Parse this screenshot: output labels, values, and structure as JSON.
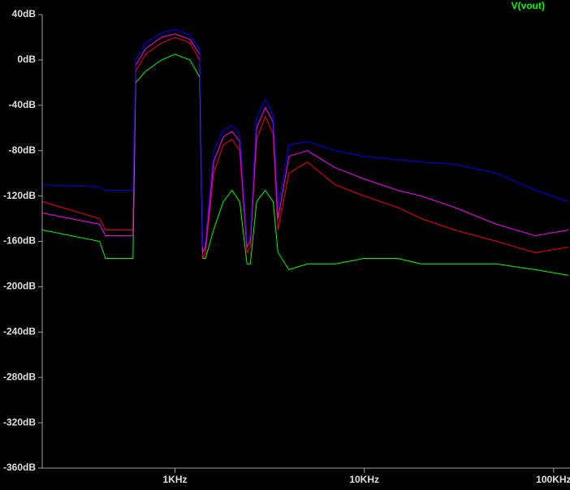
{
  "chart_data": {
    "type": "line",
    "xscale": "log",
    "legend_color": "#00ff00",
    "x": [
      200,
      400,
      430,
      600,
      620,
      700,
      850,
      1000,
      1200,
      1350,
      1400,
      1450,
      1600,
      1800,
      2000,
      2200,
      2400,
      2500,
      2700,
      3000,
      3300,
      3500,
      4000,
      5000,
      7000,
      10000,
      15000,
      20000,
      30000,
      50000,
      80000,
      120000
    ],
    "series": [
      {
        "name": "V(vout)",
        "color": "#00ff00",
        "values": [
          -150,
          -160,
          -175,
          -175,
          -20,
          -10,
          0,
          5,
          0,
          -15,
          -175,
          -175,
          -150,
          -125,
          -115,
          -125,
          -180,
          -180,
          -125,
          -115,
          -125,
          -170,
          -185,
          -180,
          -180,
          -175,
          -175,
          -180,
          -180,
          -180,
          -185,
          -190
        ]
      },
      {
        "color": "#ff0000",
        "values": [
          -125,
          -140,
          -150,
          -150,
          -10,
          5,
          15,
          20,
          15,
          0,
          -175,
          -170,
          -100,
          -75,
          -70,
          -80,
          -170,
          -165,
          -70,
          -50,
          -65,
          -150,
          -100,
          -90,
          -110,
          -120,
          -130,
          -140,
          -150,
          -160,
          -170,
          -165
        ]
      },
      {
        "color": "#ff00ff",
        "values": [
          -135,
          -145,
          -155,
          -155,
          -5,
          10,
          20,
          23,
          18,
          5,
          -170,
          -165,
          -90,
          -68,
          -63,
          -72,
          -165,
          -160,
          -60,
          -42,
          -55,
          -140,
          -85,
          -80,
          -95,
          -105,
          -115,
          -120,
          -130,
          -145,
          -155,
          -150
        ]
      },
      {
        "color": "#0000ff",
        "values": [
          -110,
          -112,
          -115,
          -115,
          0,
          15,
          24,
          27,
          22,
          10,
          -165,
          -160,
          -80,
          -62,
          -58,
          -65,
          -160,
          -155,
          -50,
          -35,
          -48,
          -130,
          -75,
          -72,
          -80,
          -85,
          -88,
          -90,
          -92,
          -100,
          -115,
          -125
        ]
      }
    ],
    "xlim": [
      199,
      122000
    ],
    "xticks": [
      {
        "value": 1000,
        "label": "1KHz"
      },
      {
        "value": 10000,
        "label": "10KHz"
      },
      {
        "value": 100000,
        "label": "100KHz"
      }
    ],
    "ylim": [
      -360,
      40
    ],
    "yticks": [
      {
        "value": 40,
        "label": "40dB"
      },
      {
        "value": 0,
        "label": "0dB"
      },
      {
        "value": -40,
        "label": "-40dB"
      },
      {
        "value": -80,
        "label": "-80dB"
      },
      {
        "value": -120,
        "label": "-120dB"
      },
      {
        "value": -160,
        "label": "-160dB"
      },
      {
        "value": -200,
        "label": "-200dB"
      },
      {
        "value": -240,
        "label": "-240dB"
      },
      {
        "value": -280,
        "label": "-280dB"
      },
      {
        "value": -320,
        "label": "-320dB"
      },
      {
        "value": -360,
        "label": "-360dB"
      }
    ]
  }
}
